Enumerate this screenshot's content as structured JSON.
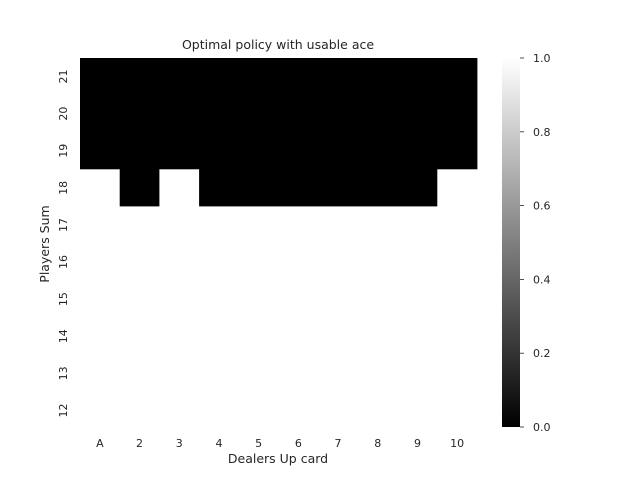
{
  "chart_data": {
    "type": "heatmap",
    "title": "Optimal policy with usable ace",
    "xlabel": "Dealers Up card",
    "ylabel": "Players Sum",
    "x_categories": [
      "A",
      "2",
      "3",
      "4",
      "5",
      "6",
      "7",
      "8",
      "9",
      "10"
    ],
    "y_categories": [
      "21",
      "20",
      "19",
      "18",
      "17",
      "16",
      "15",
      "14",
      "13",
      "12"
    ],
    "values": [
      [
        0,
        0,
        0,
        0,
        0,
        0,
        0,
        0,
        0,
        0
      ],
      [
        0,
        0,
        0,
        0,
        0,
        0,
        0,
        0,
        0,
        0
      ],
      [
        0,
        0,
        0,
        0,
        0,
        0,
        0,
        0,
        0,
        0
      ],
      [
        1,
        0,
        1,
        0,
        0,
        0,
        0,
        0,
        0,
        1
      ],
      [
        1,
        1,
        1,
        1,
        1,
        1,
        1,
        1,
        1,
        1
      ],
      [
        1,
        1,
        1,
        1,
        1,
        1,
        1,
        1,
        1,
        1
      ],
      [
        1,
        1,
        1,
        1,
        1,
        1,
        1,
        1,
        1,
        1
      ],
      [
        1,
        1,
        1,
        1,
        1,
        1,
        1,
        1,
        1,
        1
      ],
      [
        1,
        1,
        1,
        1,
        1,
        1,
        1,
        1,
        1,
        1
      ],
      [
        1,
        1,
        1,
        1,
        1,
        1,
        1,
        1,
        1,
        1
      ]
    ],
    "colormap": {
      "low_color": "#000000",
      "high_color": "#ffffff"
    },
    "colorbar": {
      "vmin": 0.0,
      "vmax": 1.0,
      "ticks": [
        "0.0",
        "0.2",
        "0.4",
        "0.6",
        "0.8",
        "1.0"
      ]
    },
    "grid": false
  }
}
